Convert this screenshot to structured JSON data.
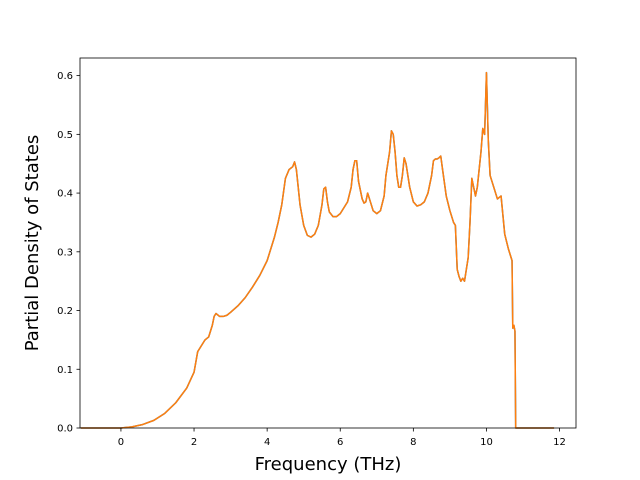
{
  "chart_data": {
    "type": "line",
    "title": "",
    "xlabel": "Frequency (THz)",
    "ylabel": "Partial Density of States",
    "xlim": [
      -1.12,
      12.45
    ],
    "ylim": [
      0.0,
      0.63
    ],
    "xticks": [
      "0",
      "2",
      "4",
      "6",
      "8",
      "10",
      "12"
    ],
    "yticks": [
      "0.0",
      "0.1",
      "0.2",
      "0.3",
      "0.4",
      "0.5",
      "0.6"
    ],
    "grid": false,
    "legend": "none",
    "series": [
      {
        "color": "#ff7f0e",
        "underlay_color": "#1f77b4",
        "x": [
          -1.1,
          -0.5,
          0.0,
          0.3,
          0.6,
          0.9,
          1.2,
          1.5,
          1.8,
          2.0,
          2.1,
          2.2,
          2.3,
          2.4,
          2.5,
          2.55,
          2.6,
          2.7,
          2.8,
          2.9,
          3.0,
          3.2,
          3.4,
          3.6,
          3.8,
          4.0,
          4.2,
          4.3,
          4.4,
          4.5,
          4.6,
          4.7,
          4.75,
          4.8,
          4.9,
          5.0,
          5.1,
          5.2,
          5.3,
          5.4,
          5.5,
          5.55,
          5.6,
          5.65,
          5.7,
          5.8,
          5.9,
          6.0,
          6.1,
          6.2,
          6.3,
          6.35,
          6.4,
          6.45,
          6.5,
          6.6,
          6.65,
          6.7,
          6.75,
          6.8,
          6.9,
          7.0,
          7.1,
          7.2,
          7.25,
          7.3,
          7.35,
          7.4,
          7.45,
          7.5,
          7.55,
          7.6,
          7.65,
          7.7,
          7.75,
          7.8,
          7.9,
          8.0,
          8.1,
          8.2,
          8.3,
          8.4,
          8.5,
          8.55,
          8.6,
          8.65,
          8.7,
          8.75,
          8.8,
          8.9,
          9.0,
          9.1,
          9.15,
          9.2,
          9.25,
          9.3,
          9.35,
          9.4,
          9.5,
          9.55,
          9.6,
          9.7,
          9.75,
          9.8,
          9.85,
          9.9,
          9.95,
          10.0,
          10.05,
          10.1,
          10.15,
          10.2,
          10.25,
          10.3,
          10.4,
          10.5,
          10.6,
          10.65,
          10.7,
          10.72,
          10.75,
          10.78,
          10.8,
          11.0,
          11.5,
          11.85
        ],
        "y": [
          0.0,
          0.0,
          0.0,
          0.002,
          0.006,
          0.013,
          0.025,
          0.043,
          0.068,
          0.095,
          0.13,
          0.14,
          0.15,
          0.155,
          0.175,
          0.19,
          0.195,
          0.19,
          0.19,
          0.192,
          0.197,
          0.208,
          0.222,
          0.24,
          0.26,
          0.285,
          0.325,
          0.35,
          0.38,
          0.425,
          0.44,
          0.445,
          0.453,
          0.44,
          0.38,
          0.345,
          0.328,
          0.325,
          0.33,
          0.345,
          0.38,
          0.407,
          0.41,
          0.385,
          0.368,
          0.36,
          0.36,
          0.365,
          0.375,
          0.385,
          0.41,
          0.44,
          0.455,
          0.455,
          0.42,
          0.39,
          0.383,
          0.385,
          0.4,
          0.39,
          0.37,
          0.365,
          0.37,
          0.395,
          0.43,
          0.45,
          0.47,
          0.506,
          0.5,
          0.47,
          0.43,
          0.41,
          0.41,
          0.43,
          0.46,
          0.45,
          0.41,
          0.385,
          0.378,
          0.38,
          0.385,
          0.4,
          0.43,
          0.455,
          0.458,
          0.458,
          0.46,
          0.463,
          0.44,
          0.395,
          0.37,
          0.35,
          0.345,
          0.27,
          0.258,
          0.25,
          0.255,
          0.25,
          0.29,
          0.35,
          0.425,
          0.395,
          0.41,
          0.44,
          0.47,
          0.51,
          0.5,
          0.605,
          0.49,
          0.43,
          0.42,
          0.41,
          0.4,
          0.39,
          0.395,
          0.33,
          0.305,
          0.295,
          0.285,
          0.17,
          0.175,
          0.165,
          0.0,
          0.0,
          0.0,
          0.0
        ]
      }
    ]
  }
}
